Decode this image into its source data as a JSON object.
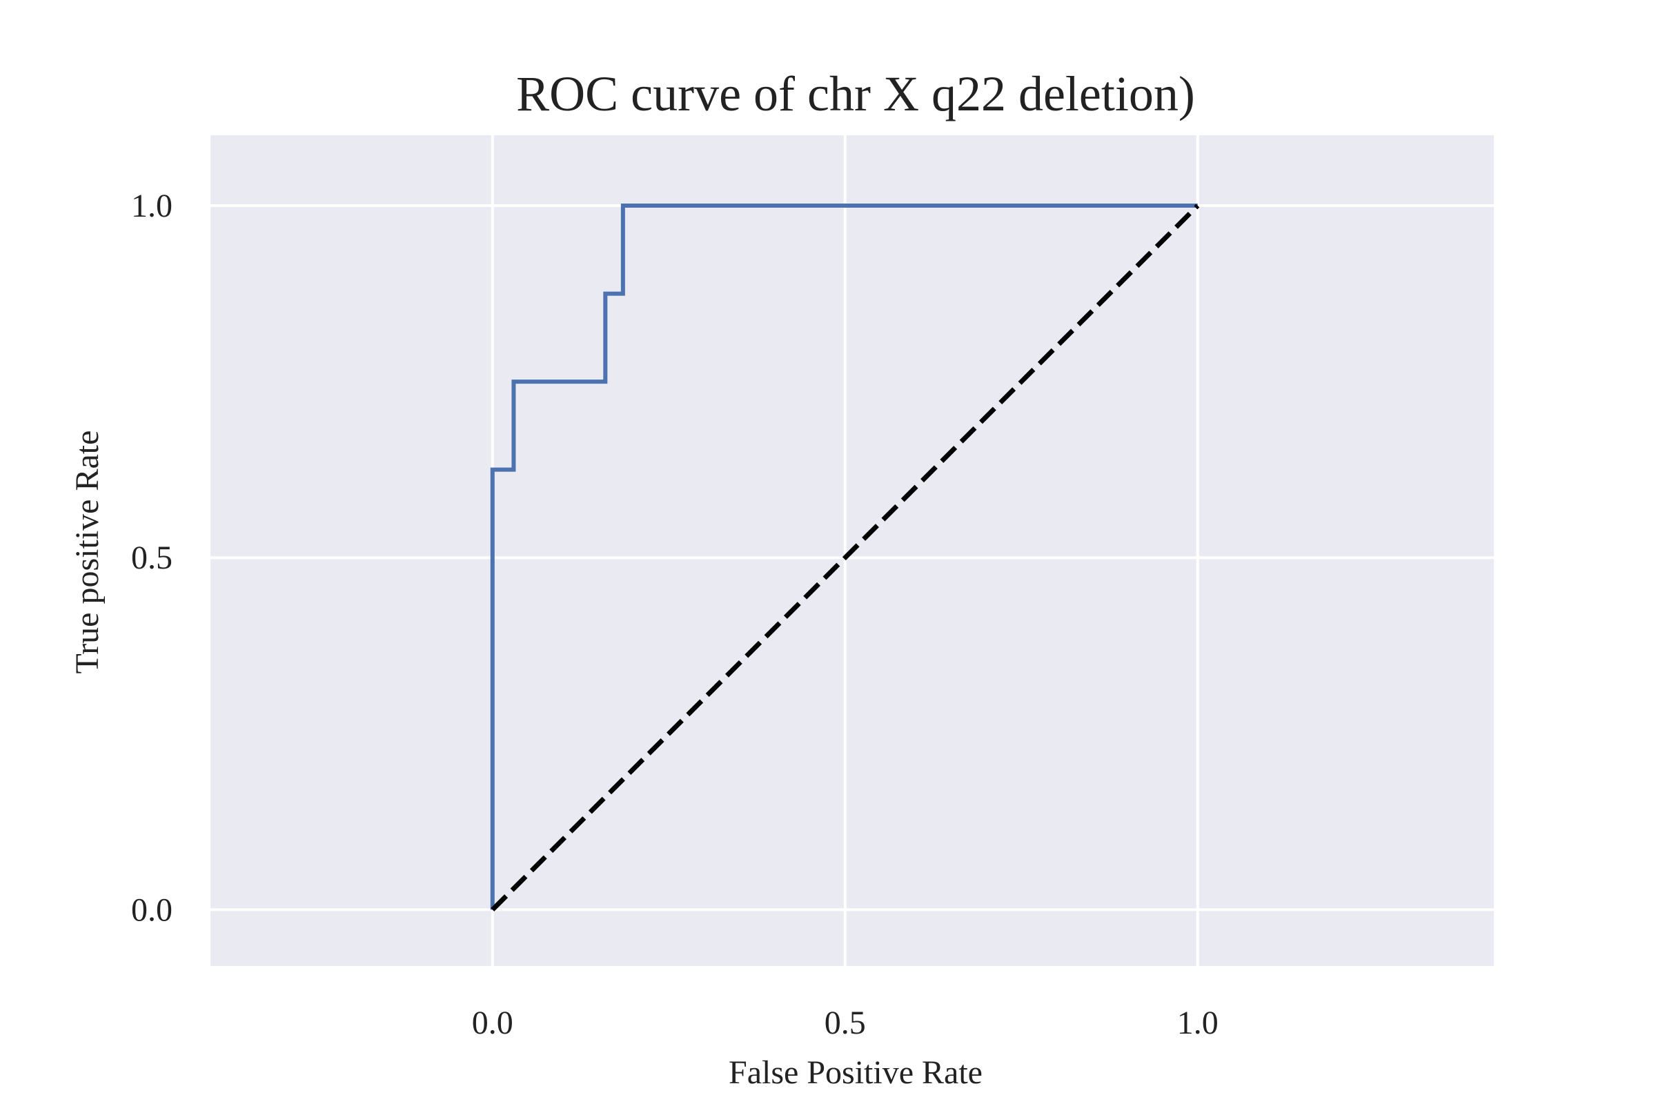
{
  "chart_data": {
    "type": "line",
    "title": "ROC curve of chr X q22 deletion)",
    "xlabel": "False Positive Rate",
    "ylabel": "True positive Rate",
    "xlim": [
      -0.4,
      1.42
    ],
    "ylim": [
      -0.08,
      1.1
    ],
    "xticks": [
      {
        "value": 0.0,
        "label": "0.0"
      },
      {
        "value": 0.5,
        "label": "0.5"
      },
      {
        "value": 1.0,
        "label": "1.0"
      }
    ],
    "yticks": [
      {
        "value": 0.0,
        "label": "0.0"
      },
      {
        "value": 0.5,
        "label": "0.5"
      },
      {
        "value": 1.0,
        "label": "1.0"
      }
    ],
    "grid": true,
    "colors": {
      "plot_background": "#eaeaf2",
      "grid": "#ffffff",
      "roc_line": "#4c72b0",
      "diagonal": "#000000"
    },
    "series": [
      {
        "style": "solid",
        "x": [
          0.0,
          0.0,
          0.03,
          0.03,
          0.16,
          0.16,
          0.185,
          0.185,
          1.0
        ],
        "y": [
          0.0,
          0.625,
          0.625,
          0.75,
          0.75,
          0.875,
          0.875,
          1.0,
          1.0
        ]
      },
      {
        "style": "dashed",
        "x": [
          0.0,
          1.0
        ],
        "y": [
          0.0,
          1.0
        ]
      }
    ]
  }
}
